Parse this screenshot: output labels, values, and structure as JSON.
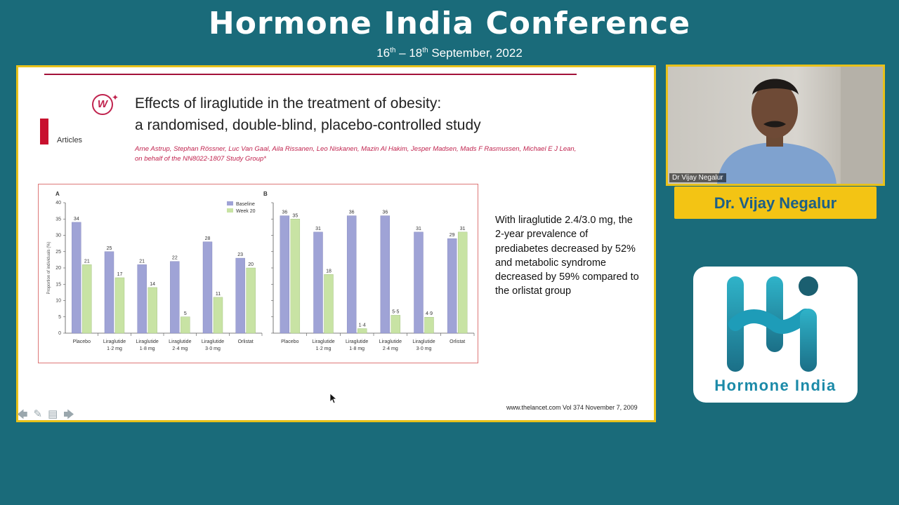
{
  "header": {
    "title": "Hormone India  Conference",
    "dates_start": "16",
    "dates_start_sup": "th",
    "dates_mid": " – 18",
    "dates_end_sup": "th",
    "dates_tail": " September, 2022"
  },
  "slide": {
    "title_line1": "Effects of liraglutide in the treatment of obesity:",
    "title_line2": "a randomised, double-blind, placebo-controlled study",
    "section": "Articles",
    "authors_line1": "Arne Astrup, Stephan Rössner, Luc Van Gaal, Aila Rissanen, Leo Niskanen, Mazin Al Hakim, Jesper Madsen, Mads F Rasmussen, Michael E J Lean,",
    "authors_line2": "on behalf of the NN8022-1807 Study Group*",
    "summary": "With liraglutide 2.4/3.0 mg, the 2-year prevalence of prediabetes decreased by 52% and metabolic syndrome decreased by 59% compared to the orlistat group",
    "reference": "www.thelancet.com Vol 374 November 7, 2009",
    "colors": {
      "baseline": "#9fa3d6",
      "week20": "#c8e3a4",
      "accent": "#c0234e"
    }
  },
  "chart_data": [
    {
      "type": "bar",
      "panel": "A",
      "ylabel": "Proportion of individuals (%)",
      "ylim": [
        0,
        40
      ],
      "yticks": [
        "0",
        "5",
        "10",
        "15",
        "20",
        "25",
        "30",
        "35",
        "40"
      ],
      "categories": [
        "Placebo",
        "Liraglutide 1·2 mg",
        "Liraglutide 1·8 mg",
        "Liraglutide 2·4 mg",
        "Liraglutide 3·0 mg",
        "Orlistat"
      ],
      "series": [
        {
          "name": "Baseline",
          "values": [
            34,
            25,
            21,
            22,
            28,
            23
          ]
        },
        {
          "name": "Week 20",
          "values": [
            21,
            17,
            14,
            5,
            11,
            20
          ]
        }
      ],
      "labels_baseline": [
        "34",
        "25",
        "21",
        "22",
        "28",
        "23"
      ],
      "labels_week20": [
        "21",
        "17",
        "14",
        "5",
        "11",
        "20"
      ]
    },
    {
      "type": "bar",
      "panel": "B",
      "ylim": [
        0,
        40
      ],
      "categories": [
        "Placebo",
        "Liraglutide 1·2 mg",
        "Liraglutide 1·8 mg",
        "Liraglutide 2·4 mg",
        "Liraglutide 3·0 mg",
        "Orlistat"
      ],
      "series": [
        {
          "name": "Baseline",
          "values": [
            36,
            31,
            36,
            36,
            31,
            29
          ]
        },
        {
          "name": "Week 20",
          "values": [
            35,
            18,
            1.4,
            5.5,
            4.9,
            31
          ]
        }
      ],
      "labels_baseline": [
        "36",
        "31",
        "36",
        "36",
        "31",
        "29"
      ],
      "labels_week20": [
        "35",
        "18",
        "1·4",
        "5·5",
        "4·9",
        "31"
      ]
    }
  ],
  "speaker": {
    "video_tag": "Dr Vijay Negalur",
    "banner": "Dr. Vijay Negalur"
  },
  "logo": {
    "text": "Hormone India"
  }
}
